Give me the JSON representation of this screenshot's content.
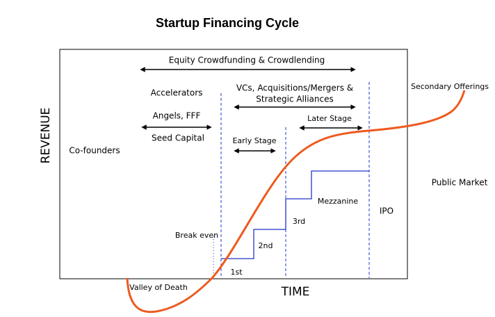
{
  "header": {
    "title": "Startup Financing Cycle"
  },
  "axes": {
    "y_label": "REVENUE",
    "x_label": "TIME"
  },
  "labels": {
    "equity": "Equity Crowdfunding & Crowdlending",
    "accelerators": "Accelerators",
    "angels": "Angels, FFF",
    "seed": "Seed Capital",
    "cofounders": "Co-founders",
    "vcs_line1": "VCs, Acquisitions/Mergers &",
    "vcs_line2": "Strategic Alliances",
    "later_stage": "Later Stage",
    "early_stage": "Early Stage",
    "public_market": "Public Market",
    "secondary": "Secondary Offerings",
    "mezzanine": "Mezzanine",
    "ipo": "IPO",
    "third": "3rd",
    "break_even": "Break even",
    "second": "2nd",
    "first": "1st",
    "valley": "Valley of Death"
  }
}
